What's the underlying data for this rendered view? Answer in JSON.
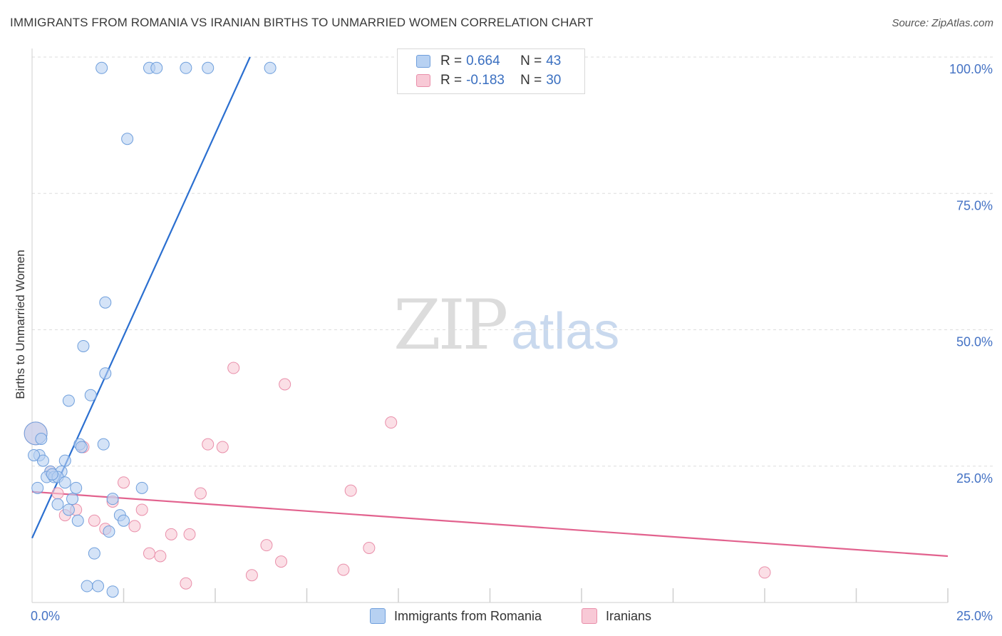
{
  "header": {
    "title": "IMMIGRANTS FROM ROMANIA VS IRANIAN BIRTHS TO UNMARRIED WOMEN CORRELATION CHART",
    "source": "Source: ZipAtlas.com"
  },
  "watermark": {
    "zip": "ZIP",
    "atlas": "atlas"
  },
  "legend": {
    "rows": [
      {
        "r_label": "R = ",
        "r_value": "0.664",
        "n_label": "N = ",
        "n_value": "43",
        "color": "#a9c8f0"
      },
      {
        "r_label": "R = ",
        "r_value": "-0.183",
        "n_label": "N = ",
        "n_value": "30",
        "color": "#f6b8c9"
      }
    ]
  },
  "bottom_legend": [
    {
      "label": "Immigrants from Romania",
      "color": "#a9c8f0"
    },
    {
      "label": "Iranians",
      "color": "#f6b8c9"
    }
  ],
  "colors": {
    "romania_fill": "#b7d1f2",
    "romania_stroke": "#6f9fdc",
    "romania_line": "#2b6fd0",
    "iran_fill": "#f8c9d6",
    "iran_stroke": "#e98faa",
    "iran_line": "#e2628e",
    "tick": "#4472c4",
    "grid": "#dddddd"
  },
  "chart_data": {
    "type": "scatter",
    "title": "IMMIGRANTS FROM ROMANIA VS IRANIAN BIRTHS TO UNMARRIED WOMEN CORRELATION CHART",
    "xlabel": "",
    "ylabel": "Births to Unmarried Women",
    "xlim": [
      0,
      25
    ],
    "ylim": [
      0,
      100
    ],
    "x_tick_labels": [
      "0.0%",
      "25.0%"
    ],
    "y_tick_labels": [
      "25.0%",
      "50.0%",
      "75.0%",
      "100.0%"
    ],
    "y_ticks": [
      25,
      50,
      75,
      100
    ],
    "grid": true,
    "series": [
      {
        "name": "Immigrants from Romania",
        "points": [
          [
            1.9,
            98
          ],
          [
            3.2,
            98
          ],
          [
            3.4,
            98
          ],
          [
            4.2,
            98
          ],
          [
            4.8,
            98
          ],
          [
            6.5,
            98
          ],
          [
            2.6,
            85
          ],
          [
            2.0,
            55
          ],
          [
            1.4,
            47
          ],
          [
            2.0,
            42
          ],
          [
            1.0,
            37
          ],
          [
            1.6,
            38
          ],
          [
            1.3,
            29
          ],
          [
            1.95,
            29
          ],
          [
            0.2,
            27
          ],
          [
            0.3,
            26
          ],
          [
            0.9,
            26
          ],
          [
            0.5,
            24
          ],
          [
            0.8,
            24
          ],
          [
            0.4,
            23
          ],
          [
            0.6,
            23
          ],
          [
            0.7,
            23
          ],
          [
            0.9,
            22
          ],
          [
            1.2,
            21
          ],
          [
            3.0,
            21
          ],
          [
            2.2,
            19
          ],
          [
            1.1,
            19
          ],
          [
            0.7,
            18
          ],
          [
            1.0,
            17
          ],
          [
            2.4,
            16
          ],
          [
            2.5,
            15
          ],
          [
            1.25,
            15
          ],
          [
            2.1,
            13
          ],
          [
            1.7,
            9
          ],
          [
            1.5,
            3
          ],
          [
            1.8,
            3
          ],
          [
            2.2,
            2
          ],
          [
            0.1,
            31
          ],
          [
            0.05,
            27
          ],
          [
            0.15,
            21
          ],
          [
            0.25,
            30
          ],
          [
            1.35,
            28.5
          ],
          [
            0.55,
            23.5
          ]
        ],
        "trend": {
          "x": [
            0,
            5.95
          ],
          "y": [
            11.8,
            100
          ]
        }
      },
      {
        "name": "Iranians",
        "points": [
          [
            0.1,
            31
          ],
          [
            5.5,
            43
          ],
          [
            6.9,
            40
          ],
          [
            9.8,
            33
          ],
          [
            4.8,
            29
          ],
          [
            5.2,
            28.5
          ],
          [
            1.4,
            28.5
          ],
          [
            0.5,
            24
          ],
          [
            2.5,
            22
          ],
          [
            8.7,
            20.5
          ],
          [
            4.6,
            20
          ],
          [
            0.7,
            20
          ],
          [
            2.2,
            18.5
          ],
          [
            3.0,
            17
          ],
          [
            1.2,
            17
          ],
          [
            0.9,
            16
          ],
          [
            1.7,
            15
          ],
          [
            2.0,
            13.5
          ],
          [
            2.8,
            14
          ],
          [
            3.8,
            12.5
          ],
          [
            4.3,
            12.5
          ],
          [
            6.4,
            10.5
          ],
          [
            9.2,
            10
          ],
          [
            3.2,
            9
          ],
          [
            3.5,
            8.5
          ],
          [
            6.8,
            7.5
          ],
          [
            8.5,
            6
          ],
          [
            6.0,
            5
          ],
          [
            4.2,
            3.5
          ],
          [
            20.0,
            5.5
          ]
        ],
        "trend": {
          "x": [
            0,
            25
          ],
          "y": [
            20.3,
            8.5
          ]
        }
      }
    ]
  }
}
